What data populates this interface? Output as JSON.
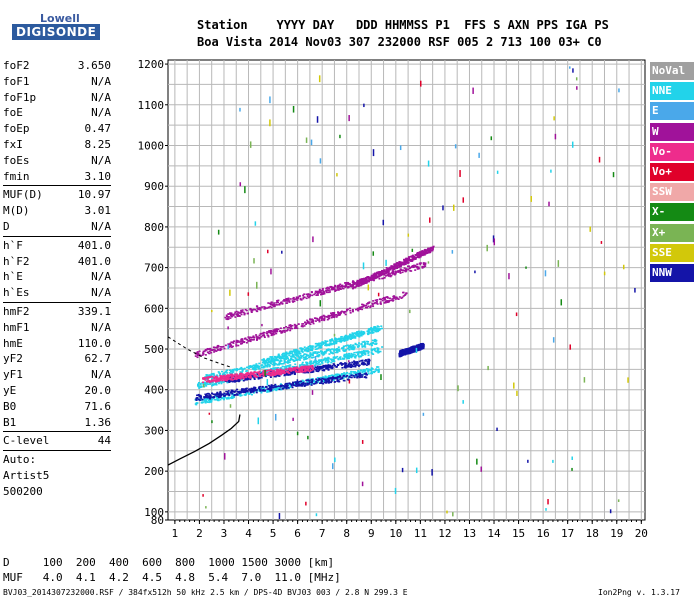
{
  "logo": {
    "top": "Lowell",
    "main": "DIGISONDE"
  },
  "header": {
    "labels": "Station    YYYY DAY   DDD HHMMSS P1  FFS S AXN PPS IGA PS",
    "values": "Boa Vista 2014 Nov03 307 232000 RSF 005 2 713 100 03+ C0"
  },
  "params": [
    {
      "label": "foF2",
      "value": "3.650"
    },
    {
      "label": "foF1",
      "value": "N/A"
    },
    {
      "label": "foF1p",
      "value": "N/A"
    },
    {
      "label": "foE",
      "value": "N/A"
    },
    {
      "label": "foEp",
      "value": "0.47"
    },
    {
      "label": "fxI",
      "value": "8.25"
    },
    {
      "label": "foEs",
      "value": "N/A"
    },
    {
      "label": "fmin",
      "value": "3.10"
    },
    {
      "sep": true
    },
    {
      "label": "MUF(D)",
      "value": "10.97"
    },
    {
      "label": "M(D)",
      "value": "3.01"
    },
    {
      "label": "D",
      "value": "N/A"
    },
    {
      "sep": true
    },
    {
      "label": "h`F",
      "value": "401.0"
    },
    {
      "label": "h`F2",
      "value": "401.0"
    },
    {
      "label": "h`E",
      "value": "N/A"
    },
    {
      "label": "h`Es",
      "value": "N/A"
    },
    {
      "sep": true
    },
    {
      "label": "hmF2",
      "value": "339.1"
    },
    {
      "label": "hmF1",
      "value": "N/A"
    },
    {
      "label": "hmE",
      "value": "110.0"
    },
    {
      "label": "yF2",
      "value": "62.7"
    },
    {
      "label": "yF1",
      "value": "N/A"
    },
    {
      "label": "yE",
      "value": "20.0"
    },
    {
      "label": "B0",
      "value": "71.6"
    },
    {
      "label": "B1",
      "value": "1.36"
    },
    {
      "sep": true
    },
    {
      "label": "C-level",
      "value": "44"
    },
    {
      "sep": true
    },
    {
      "text": "Auto:"
    },
    {
      "text": "Artist5"
    },
    {
      "text": "500200"
    }
  ],
  "legend": [
    {
      "label": "NoVal",
      "color": "#a0a0a0"
    },
    {
      "label": "NNE",
      "color": "#22d3ea"
    },
    {
      "label": "E",
      "color": "#4aa8ea"
    },
    {
      "label": "W",
      "color": "#a0129a"
    },
    {
      "label": "Vo-",
      "color": "#ee2c8c"
    },
    {
      "label": "Vo+",
      "color": "#e0002a"
    },
    {
      "label": "SSW",
      "color": "#f0a8a8"
    },
    {
      "label": "X-",
      "color": "#148a14"
    },
    {
      "label": "X+",
      "color": "#7ab454"
    },
    {
      "label": "SSE",
      "color": "#d2c80a"
    },
    {
      "label": "NNW",
      "color": "#1414a8"
    }
  ],
  "table": {
    "d_row": "D     100  200  400  600  800  1000 1500 3000 [km]",
    "muf_row": "MUF   4.0  4.1  4.2  4.5  4.8  5.4  7.0  11.0 [MHz]"
  },
  "footer": {
    "left": "BVJ03_2014307232000.RSF / 384fx512h 50 kHz 2.5 km / DPS-4D BVJ03 003 / 2.8 N 299.3 E",
    "right": "Ion2Png v. 1.3.17"
  },
  "chart_data": {
    "type": "scatter",
    "x_ticks": [
      1,
      2,
      3,
      4,
      5,
      6,
      7,
      8,
      9,
      10,
      11,
      12,
      13,
      14,
      15,
      16,
      17,
      18,
      19,
      20
    ],
    "y_ticks": [
      80,
      100,
      200,
      300,
      400,
      500,
      600,
      700,
      800,
      900,
      1000,
      1100,
      1200
    ],
    "xlim": [
      0.72,
      20.15
    ],
    "ylim": [
      80,
      1210
    ],
    "grid": true,
    "series": [
      {
        "name": "NNE",
        "color": "#22d3ea",
        "segments": [
          [
            [
              1.8,
              372
            ],
            [
              9.3,
              452
            ]
          ],
          [
            [
              1.9,
              412
            ],
            [
              9.4,
              500
            ]
          ],
          [
            [
              2.2,
              432
            ],
            [
              9.2,
              520
            ]
          ],
          [
            [
              4.5,
              470
            ],
            [
              9.4,
              555
            ]
          ]
        ]
      },
      {
        "name": "W",
        "color": "#a0129a",
        "segments": [
          [
            [
              1.8,
              487
            ],
            [
              10.4,
              637
            ]
          ],
          [
            [
              3.0,
              580
            ],
            [
              11.2,
              710
            ]
          ],
          [
            [
              8.2,
              655
            ],
            [
              11.5,
              750
            ]
          ]
        ]
      },
      {
        "name": "NNW",
        "color": "#1414a8",
        "segments": [
          [
            [
              1.8,
              382
            ],
            [
              8.8,
              438
            ]
          ],
          [
            [
              3.0,
              425
            ],
            [
              8.9,
              470
            ]
          ],
          [
            [
              10.1,
              490
            ],
            [
              11.1,
              510
            ]
          ]
        ]
      },
      {
        "name": "Vo-",
        "color": "#ee2c8c",
        "segments": [
          [
            [
              2.1,
              425
            ],
            [
              6.6,
              455
            ]
          ]
        ]
      }
    ],
    "profile": [
      [
        3.65,
        339.1
      ],
      [
        3.6,
        322
      ],
      [
        3.3,
        305
      ],
      [
        2.9,
        288
      ],
      [
        2.4,
        268
      ],
      [
        1.8,
        248
      ],
      [
        1.2,
        230
      ],
      [
        0.72,
        215
      ]
    ],
    "profile2": [
      [
        0.72,
        530
      ],
      [
        1.5,
        500
      ],
      [
        2.2,
        478
      ],
      [
        2.8,
        465
      ],
      [
        3.3,
        455
      ]
    ]
  }
}
